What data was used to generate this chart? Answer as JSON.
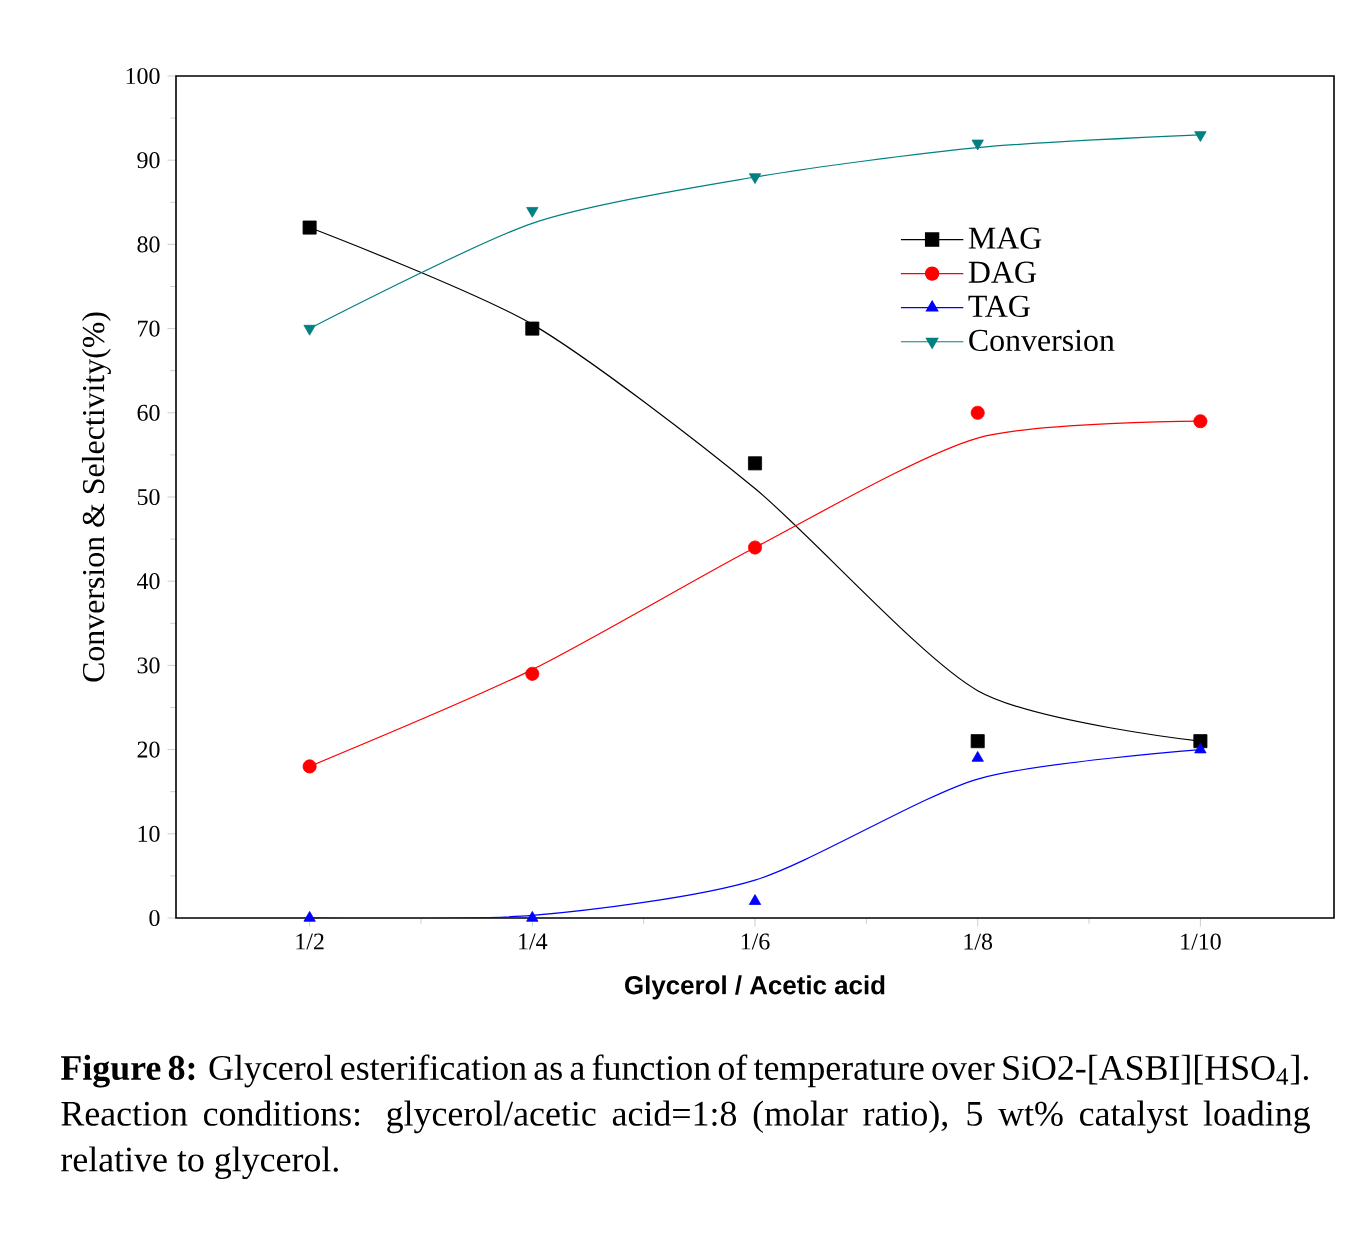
{
  "chart_data": {
    "type": "scatter",
    "xlabel": "Glycerol / Acetic acid",
    "ylabel": "Conversion & Selectivity(%)",
    "categories": [
      "1/2",
      "1/4",
      "1/6",
      "1/8",
      "1/10"
    ],
    "ylim": [
      0,
      100
    ],
    "yticks": [
      0,
      10,
      20,
      30,
      40,
      50,
      60,
      70,
      80,
      90,
      100
    ],
    "grid": false,
    "legend": "top right",
    "series": [
      {
        "name": "MAG",
        "color": "#000000",
        "marker": "square",
        "values": [
          82,
          70,
          54,
          21,
          21
        ]
      },
      {
        "name": "DAG",
        "color": "#ff0000",
        "marker": "circle",
        "values": [
          18,
          29,
          44,
          60,
          59
        ]
      },
      {
        "name": "TAG",
        "color": "#0000ff",
        "marker": "triangle",
        "values": [
          0,
          0,
          2,
          19,
          20
        ]
      },
      {
        "name": "Conversion",
        "color": "#008080",
        "marker": "triangle-down",
        "values": [
          70,
          84,
          88,
          92,
          93
        ]
      },
      {
        "type": "line",
        "color": "#000000",
        "values": [
          82,
          70.5,
          51,
          27,
          21
        ]
      },
      {
        "type": "line",
        "color": "#ff0000",
        "values": [
          18,
          29.5,
          44,
          57,
          59
        ]
      },
      {
        "type": "line",
        "color": "#0000ff",
        "values": [
          0,
          0.3,
          4.5,
          16.5,
          20
        ]
      },
      {
        "type": "line",
        "color": "#008080",
        "values": [
          70,
          82.5,
          88,
          91.5,
          93
        ]
      }
    ],
    "annotations": [
      "**Figure 8:** Glycerol esterification as a function of temperature over SiO2-[ASBI][HSO$_{4}$]. Reaction conditions: glycerol/acetic acid=1:8 (molar ratio), 5 wt% catalyst loading relative to glycerol."
    ]
  }
}
